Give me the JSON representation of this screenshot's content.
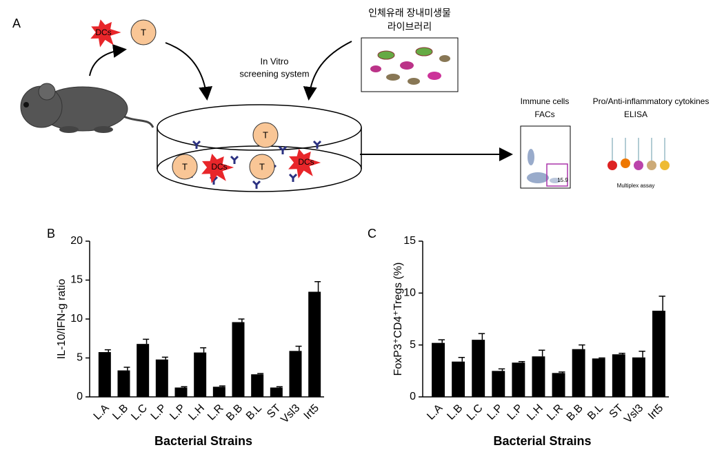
{
  "diagram": {
    "panel_label": "A",
    "dc_label": "DCs",
    "t_label": "T",
    "screening": [
      "In Vitro",
      "screening system"
    ],
    "library": [
      "인체유래 장내미생물",
      "라이브러리"
    ],
    "facs": [
      "Immune cells",
      "FACs"
    ],
    "facs_gate": "15.9",
    "elisa": [
      "Pro/Anti-inflammatory cytokines",
      "ELISA"
    ],
    "assay": "Multiplex assay"
  },
  "chart_data": [
    {
      "type": "bar",
      "panel_label": "B",
      "x_label": "Bacterial Strains",
      "y_label": "IL-10/IFN-g ratio",
      "categories": [
        "L.A",
        "L.B",
        "L.C",
        "L.P",
        "L.P",
        "L.H",
        "L.R",
        "B.B",
        "B.L",
        "ST",
        "Vsl3",
        "Irt5"
      ],
      "values": [
        5.75,
        3.4,
        6.8,
        4.8,
        1.2,
        5.7,
        1.3,
        9.6,
        2.9,
        1.2,
        5.9,
        13.5
      ],
      "errors": [
        0.3,
        0.4,
        0.6,
        0.3,
        0.1,
        0.6,
        0.1,
        0.4,
        0.1,
        0.1,
        0.6,
        1.3
      ],
      "color": "#000000",
      "ylim": [
        0,
        20
      ],
      "yticks": [
        0,
        5,
        10,
        15,
        20
      ]
    },
    {
      "type": "bar",
      "panel_label": "C",
      "x_label": "Bacterial Strains",
      "y_label": "FoxP3⁺CD4⁺Tregs (%)",
      "categories": [
        "L.A",
        "L.B",
        "L.C",
        "L.P",
        "L.P",
        "L.H",
        "L.R",
        "B.B",
        "B.L",
        "ST",
        "Vsl3",
        "Irt5"
      ],
      "values": [
        5.2,
        3.4,
        5.5,
        2.5,
        3.3,
        3.9,
        2.3,
        4.6,
        3.7,
        4.1,
        3.8,
        8.3
      ],
      "errors": [
        0.3,
        0.4,
        0.6,
        0.2,
        0.1,
        0.6,
        0.1,
        0.4,
        0.05,
        0.1,
        0.6,
        1.4
      ],
      "color": "#000000",
      "ylim": [
        0,
        15
      ],
      "yticks": [
        0,
        5,
        10,
        15
      ]
    }
  ]
}
